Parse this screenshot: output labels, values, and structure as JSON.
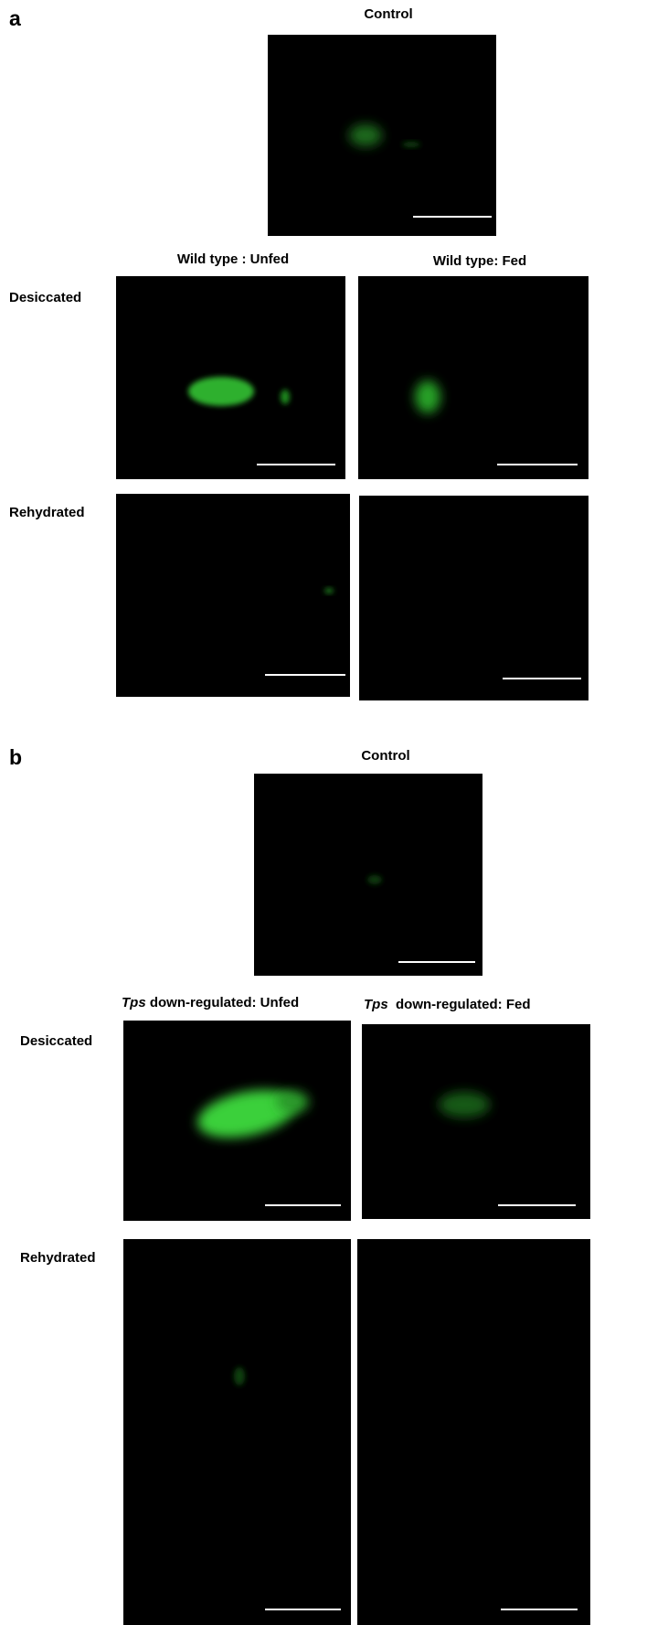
{
  "panel_a": {
    "label": "a",
    "control_title": "Control",
    "columns": [
      "Wild type : Unfed",
      "Wild type: Fed"
    ],
    "rows": [
      "Desiccated",
      "Rehydrated"
    ]
  },
  "panel_b": {
    "label": "b",
    "control_title": "Control",
    "columns": [
      {
        "italic": "Tps",
        "rest": " down-regulated: Unfed"
      },
      {
        "italic": "Tps",
        "rest": "  down-regulated: Fed"
      }
    ],
    "rows": [
      "Desiccated",
      "Rehydrated"
    ]
  }
}
